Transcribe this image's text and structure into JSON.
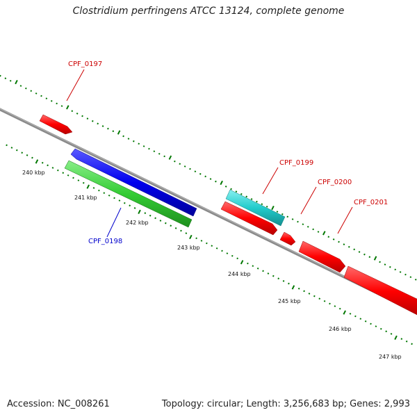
{
  "title": "Clostridium perfringens ATCC 13124, complete genome",
  "footer": {
    "accession": "Accession: NC_008261",
    "summary": "Topology: circular; Length: 3,256,683 bp; Genes: 2,993"
  },
  "scale_labels": [
    "240 kbp",
    "241 kbp",
    "242 kbp",
    "243 kbp",
    "244 kbp",
    "245 kbp",
    "246 kbp",
    "247 kbp"
  ],
  "genes": [
    {
      "id": "CPF_0197",
      "strand": "+",
      "label_color": "#cc0000"
    },
    {
      "id": "CPF_0198",
      "strand": "-",
      "label_color": "#0000cc"
    },
    {
      "id": "CPF_0199",
      "strand": "+",
      "label_color": "#cc0000"
    },
    {
      "id": "CPF_0200",
      "strand": "+",
      "label_color": "#cc0000"
    },
    {
      "id": "CPF_0201",
      "strand": "+",
      "label_color": "#cc0000"
    }
  ],
  "colors": {
    "backbone": "#8a8a8a",
    "forward_cds": "#ff0000",
    "reverse_cds": "#0000ee",
    "reverse_rna": "#33cc33",
    "forward_rna": "#22cccc",
    "tick": "#007700"
  }
}
